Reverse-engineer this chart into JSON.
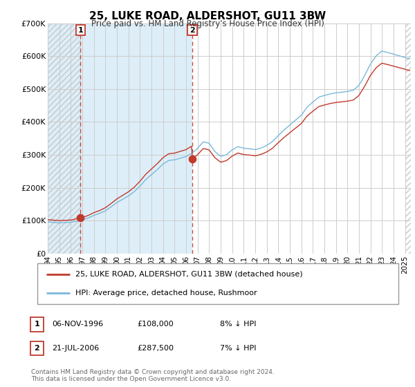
{
  "title": "25, LUKE ROAD, ALDERSHOT, GU11 3BW",
  "subtitle": "Price paid vs. HM Land Registry's House Price Index (HPI)",
  "ylim": [
    0,
    700000
  ],
  "yticks": [
    0,
    100000,
    200000,
    300000,
    400000,
    500000,
    600000,
    700000
  ],
  "ytick_labels": [
    "£0",
    "£100K",
    "£200K",
    "£300K",
    "£400K",
    "£500K",
    "£600K",
    "£700K"
  ],
  "hpi_color": "#7ab8d9",
  "price_color": "#c0392b",
  "point1_x": 1996.84,
  "point1_y": 108000,
  "point1_label": "1",
  "point2_x": 2006.54,
  "point2_y": 287500,
  "point2_label": "2",
  "legend_line1": "25, LUKE ROAD, ALDERSHOT, GU11 3BW (detached house)",
  "legend_line2": "HPI: Average price, detached house, Rushmoor",
  "table_row1": [
    "1",
    "06-NOV-1996",
    "£108,000",
    "8% ↓ HPI"
  ],
  "table_row2": [
    "2",
    "21-JUL-2006",
    "£287,500",
    "7% ↓ HPI"
  ],
  "footnote": "Contains HM Land Registry data © Crown copyright and database right 2024.\nThis data is licensed under the Open Government Licence v3.0.",
  "xmin": 1994.0,
  "xmax": 2025.5,
  "hatch_color": "#c8c8c8",
  "blue_bg_color": "#ddeef8",
  "grid_color": "#cccccc"
}
